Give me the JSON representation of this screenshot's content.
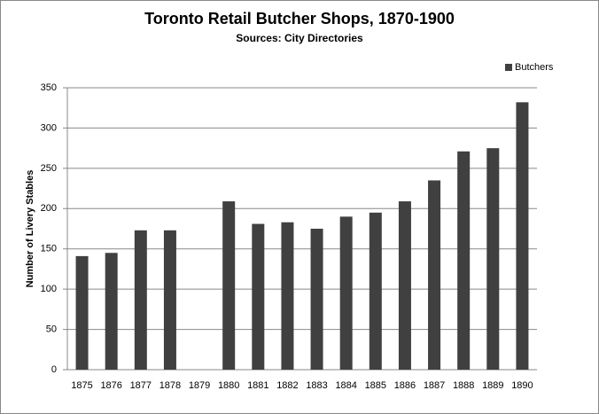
{
  "chart_data": {
    "type": "bar",
    "title": "Toronto Retail Butcher Shops, 1870-1900",
    "subtitle": "Sources: City Directories",
    "y_label": "Number of Livery Stables",
    "categories": [
      "1875",
      "1876",
      "1877",
      "1878",
      "1879",
      "1880",
      "1881",
      "1882",
      "1883",
      "1884",
      "1885",
      "1886",
      "1887",
      "1888",
      "1889",
      "1890"
    ],
    "series": [
      {
        "name": "Butchers",
        "color": "#404040",
        "values": [
          141,
          145,
          173,
          173,
          null,
          209,
          181,
          183,
          175,
          190,
          195,
          209,
          235,
          271,
          275,
          332
        ]
      }
    ],
    "ylim": [
      0,
      350
    ],
    "yticks": [
      0,
      50,
      100,
      150,
      200,
      250,
      300,
      350
    ],
    "grid": true,
    "legend": "top-right"
  }
}
